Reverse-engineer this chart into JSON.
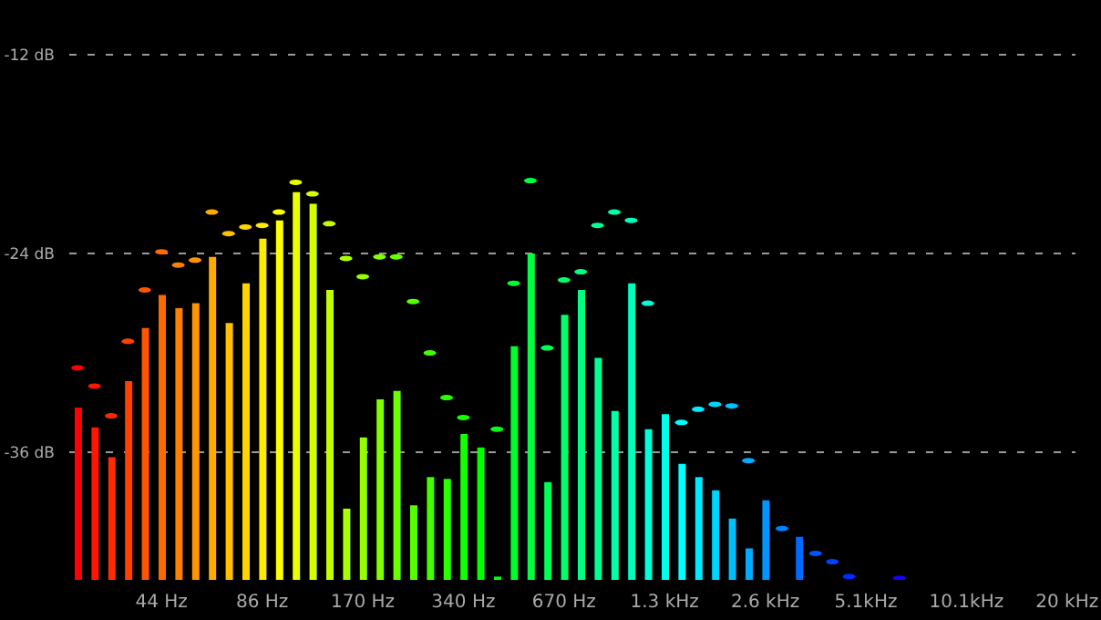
{
  "chart_data": {
    "type": "bar",
    "categories": [
      null,
      null,
      null,
      null,
      null,
      "44 Hz",
      null,
      null,
      null,
      null,
      null,
      "86 Hz",
      null,
      null,
      null,
      null,
      null,
      "170 Hz",
      null,
      null,
      null,
      null,
      null,
      "340 Hz",
      null,
      null,
      null,
      null,
      null,
      "670 Hz",
      null,
      null,
      null,
      null,
      null,
      "1.3 kHz",
      null,
      null,
      null,
      null,
      null,
      "2.6 kHz",
      null,
      null,
      null,
      null,
      null,
      "5.1kHz",
      null,
      null,
      null,
      null,
      null,
      "10.1kHz",
      null,
      null,
      null,
      null,
      null,
      "20 kHz"
    ],
    "series": [
      {
        "colors": [
          "#ff0000",
          "#ff1500",
          "#ff2a00",
          "#ff4000",
          "#ff5500",
          "#ff6a00",
          "#ff8000",
          "#ff9500",
          "#ffaa00",
          "#ffbf00",
          "#ffd500",
          "#ffea00",
          "#ffff00",
          "#eaff00",
          "#d5ff00",
          "#bfff00",
          "#aaff00",
          "#95ff00",
          "#80ff00",
          "#6aff00",
          "#55ff00",
          "#40ff00",
          "#2aff00",
          "#15ff00",
          "#00ff00",
          "#00ff15",
          "#00ff2a",
          "#00ff40",
          "#00ff55",
          "#00ff6a",
          "#00ff80",
          "#00ff95",
          "#00ffaa",
          "#00ffbf",
          "#00ffd5",
          "#00ffea",
          "#00ffff",
          "#00eaff",
          "#00d5ff",
          "#00bfff",
          "#00aaff",
          "#0095ff",
          null,
          "#006aff",
          null,
          null,
          null,
          null,
          null,
          null,
          null,
          null,
          null,
          null,
          null,
          null,
          null,
          null,
          null,
          null
        ],
        "base": [
          -43.7,
          -43.7,
          -43.7,
          -43.7,
          -43.7,
          -43.7,
          -43.7,
          -43.7,
          -43.7,
          -43.7,
          -43.7,
          -43.7,
          -43.7,
          -43.7,
          -43.7,
          -43.7,
          -43.7,
          -43.7,
          -43.7,
          -43.7,
          -43.7,
          -43.7,
          -43.7,
          -43.7,
          -43.7,
          -43.7,
          -43.7,
          -43.7,
          -43.7,
          -43.7,
          -43.7,
          -43.7,
          -43.7,
          -43.7,
          -43.7,
          -43.7,
          -43.7,
          -43.7,
          -43.7,
          -43.7,
          -43.7,
          -43.7,
          null,
          -43.7,
          null,
          null,
          null,
          null,
          null,
          null,
          null,
          null,
          null,
          null,
          null,
          null,
          null,
          null,
          null,
          null
        ],
        "values": [
          10.4,
          9.2,
          7.4,
          12.0,
          15.2,
          17.2,
          16.4,
          16.7,
          19.5,
          15.5,
          17.9,
          20.6,
          21.7,
          23.4,
          22.7,
          17.5,
          4.3,
          8.6,
          10.9,
          11.4,
          4.5,
          6.2,
          6.1,
          8.8,
          8.0,
          0.2,
          14.1,
          19.7,
          5.9,
          16.0,
          17.5,
          13.4,
          10.2,
          17.9,
          9.1,
          10.0,
          7.0,
          6.2,
          5.4,
          3.7,
          1.9,
          4.8,
          null,
          2.6,
          null,
          null,
          null,
          null,
          null,
          null,
          null,
          null,
          null,
          null,
          null,
          null,
          null,
          null,
          null,
          null
        ]
      },
      {
        "type": "scatter",
        "colors": [
          "#ff0000",
          "#ff1500",
          "#ff2a00",
          "#ff4000",
          "#ff5500",
          "#ff6a00",
          "#ff8000",
          "#ff9500",
          "#ffaa00",
          "#ffbf00",
          "#ffd500",
          "#ffea00",
          "#ffff00",
          "#eaff00",
          "#d5ff00",
          "#bfff00",
          "#aaff00",
          "#95ff00",
          "#80ff00",
          "#6aff00",
          "#55ff00",
          "#40ff00",
          "#2aff00",
          "#15ff00",
          null,
          "#00ff15",
          "#00ff2a",
          "#00ff40",
          "#00ff55",
          "#00ff6a",
          "#00ff80",
          "#00ff95",
          "#00ffaa",
          "#00ffbf",
          "#00ffd5",
          null,
          "#00ffff",
          "#00eaff",
          "#00d5ff",
          "#00bfff",
          "#00aaff",
          null,
          "#0080ff",
          null,
          "#0055ff",
          "#0040ff",
          "#002aff",
          null,
          null,
          "#1500ff",
          null,
          null,
          null,
          null,
          null,
          null,
          null,
          null,
          null,
          null
        ],
        "values": [
          -30.9,
          -32.0,
          -33.8,
          -29.3,
          -26.2,
          -23.9,
          -24.7,
          -24.4,
          -21.5,
          -22.8,
          -22.4,
          -22.3,
          -21.5,
          -19.7,
          -20.4,
          -22.2,
          -24.3,
          -25.4,
          -24.2,
          -24.2,
          -26.9,
          -30.0,
          -32.7,
          -33.9,
          null,
          -34.6,
          -25.8,
          -19.6,
          -29.7,
          -25.6,
          -25.1,
          -22.3,
          -21.5,
          -22.0,
          -27.0,
          null,
          -34.2,
          -33.4,
          -33.1,
          -33.2,
          -36.5,
          null,
          -40.6,
          null,
          -42.1,
          -42.6,
          -43.5,
          null,
          null,
          -43.6,
          null,
          null,
          null,
          null,
          null,
          null,
          null,
          null,
          null,
          null
        ]
      }
    ],
    "ylim": [
      -43.7,
      -8.7
    ],
    "yticks": [
      {
        "value": -12,
        "label": "-12 dB"
      },
      {
        "value": -24,
        "label": "-24 dB"
      },
      {
        "value": -36,
        "label": "-36 dB"
      }
    ],
    "grid": "y"
  }
}
